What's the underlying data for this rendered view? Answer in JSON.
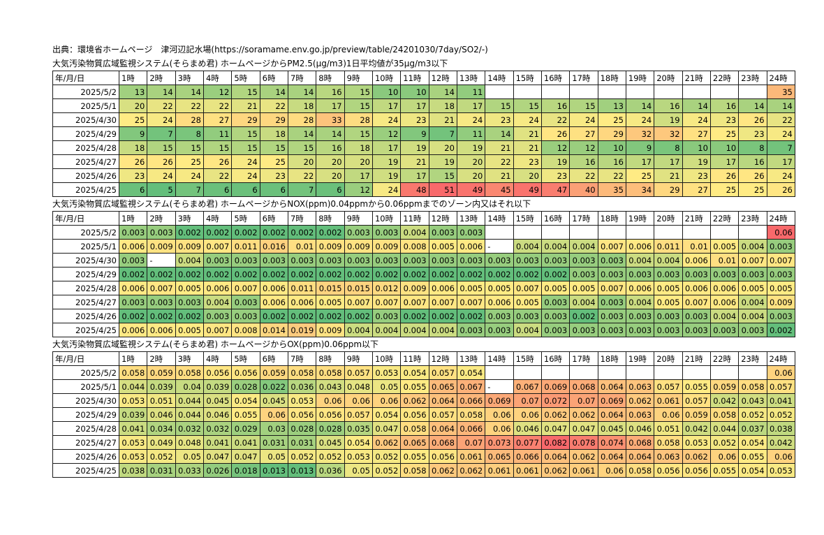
{
  "source_line": "出典：環境省ホームページ　津河辺記水場(https://soramame.env.go.jp/preview/table/24201030/7day/SO2/-)",
  "header_row": [
    "年/月/日",
    "1時",
    "2時",
    "3時",
    "4時",
    "5時",
    "6時",
    "7時",
    "8時",
    "9時",
    "10時",
    "11時",
    "12時",
    "13時",
    "14時",
    "15時",
    "16時",
    "17時",
    "18時",
    "19時",
    "20時",
    "21時",
    "22時",
    "23時",
    "24時"
  ],
  "tables": [
    {
      "title": "大気汚染物質広域監視システム(そらまめ君) ホームページからPM2.5(μg/m3)1日平均値が35μg/m3以下",
      "scale": {
        "min": 5,
        "mid": 25,
        "max": 51
      },
      "rows": [
        {
          "date": "2025/5/2",
          "values": [
            "13",
            "14",
            "14",
            "12",
            "15",
            "14",
            "14",
            "16",
            "15",
            "10",
            "10",
            "14",
            "11",
            "",
            "",
            "",
            "",
            "",
            "",
            "",
            "",
            "",
            "",
            "35"
          ]
        },
        {
          "date": "2025/5/1",
          "values": [
            "20",
            "22",
            "22",
            "22",
            "21",
            "22",
            "18",
            "17",
            "15",
            "17",
            "17",
            "18",
            "17",
            "15",
            "15",
            "16",
            "15",
            "13",
            "14",
            "16",
            "14",
            "16",
            "14",
            "14"
          ]
        },
        {
          "date": "2025/4/30",
          "values": [
            "25",
            "24",
            "28",
            "27",
            "29",
            "29",
            "28",
            "33",
            "28",
            "24",
            "23",
            "21",
            "24",
            "23",
            "24",
            "22",
            "24",
            "25",
            "24",
            "19",
            "24",
            "23",
            "26",
            "22"
          ]
        },
        {
          "date": "2025/4/29",
          "values": [
            "9",
            "7",
            "8",
            "11",
            "15",
            "18",
            "14",
            "14",
            "15",
            "12",
            "9",
            "7",
            "11",
            "14",
            "21",
            "26",
            "27",
            "29",
            "32",
            "32",
            "27",
            "25",
            "23",
            "24"
          ]
        },
        {
          "date": "2025/4/28",
          "values": [
            "18",
            "15",
            "15",
            "15",
            "15",
            "15",
            "15",
            "16",
            "18",
            "17",
            "19",
            "20",
            "19",
            "21",
            "21",
            "12",
            "12",
            "10",
            "9",
            "8",
            "10",
            "10",
            "8",
            "7"
          ]
        },
        {
          "date": "2025/4/27",
          "values": [
            "26",
            "26",
            "25",
            "26",
            "24",
            "25",
            "20",
            "20",
            "20",
            "19",
            "21",
            "19",
            "20",
            "22",
            "23",
            "19",
            "16",
            "16",
            "17",
            "17",
            "19",
            "17",
            "16",
            "17"
          ]
        },
        {
          "date": "2025/4/26",
          "values": [
            "23",
            "24",
            "24",
            "22",
            "24",
            "23",
            "22",
            "20",
            "17",
            "19",
            "17",
            "15",
            "20",
            "21",
            "20",
            "23",
            "22",
            "22",
            "25",
            "21",
            "23",
            "26",
            "26",
            "24"
          ]
        },
        {
          "date": "2025/4/25",
          "values": [
            "6",
            "5",
            "7",
            "6",
            "6",
            "6",
            "7",
            "6",
            "12",
            "24",
            "48",
            "51",
            "49",
            "45",
            "49",
            "47",
            "40",
            "35",
            "34",
            "29",
            "27",
            "25",
            "25",
            "26"
          ]
        }
      ]
    },
    {
      "title": "大気汚染物質広域監視システム(そらまめ君) ホームページからNOX(ppm)0.04ppmから0.06ppmまでのゾーン内又はそれ以下",
      "scale": {
        "min": 0.002,
        "mid": 0.005,
        "max": 0.06
      },
      "rows": [
        {
          "date": "2025/5/2",
          "values": [
            "0.003",
            "0.003",
            "0.002",
            "0.002",
            "0.002",
            "0.002",
            "0.002",
            "0.002",
            "0.003",
            "0.003",
            "0.004",
            "0.003",
            "0.003",
            "",
            "",
            "",
            "",
            "",
            "",
            "",
            "",
            "",
            "",
            "0.06"
          ]
        },
        {
          "date": "2025/5/1",
          "values": [
            "0.006",
            "0.009",
            "0.009",
            "0.007",
            "0.011",
            "0.016",
            "0.01",
            "0.009",
            "0.009",
            "0.009",
            "0.008",
            "0.005",
            "0.006",
            "-",
            "0.004",
            "0.004",
            "0.004",
            "0.007",
            "0.006",
            "0.011",
            "0.01",
            "0.005",
            "0.004",
            "0.003"
          ]
        },
        {
          "date": "2025/4/30",
          "values": [
            "0.003",
            "-",
            "0.004",
            "0.003",
            "0.003",
            "0.003",
            "0.003",
            "0.003",
            "0.003",
            "0.003",
            "0.003",
            "0.003",
            "0.003",
            "0.003",
            "0.003",
            "0.003",
            "0.003",
            "0.003",
            "0.004",
            "0.004",
            "0.006",
            "0.01",
            "0.007",
            "0.007"
          ]
        },
        {
          "date": "2025/4/29",
          "values": [
            "0.002",
            "0.002",
            "0.002",
            "0.002",
            "0.002",
            "0.002",
            "0.002",
            "0.002",
            "0.002",
            "0.002",
            "0.002",
            "0.002",
            "0.002",
            "0.002",
            "0.002",
            "0.002",
            "0.003",
            "0.003",
            "0.003",
            "0.003",
            "0.003",
            "0.003",
            "0.003",
            "0.003"
          ]
        },
        {
          "date": "2025/4/28",
          "values": [
            "0.006",
            "0.007",
            "0.005",
            "0.006",
            "0.007",
            "0.006",
            "0.011",
            "0.015",
            "0.015",
            "0.012",
            "0.009",
            "0.006",
            "0.005",
            "0.005",
            "0.007",
            "0.005",
            "0.005",
            "0.007",
            "0.006",
            "0.005",
            "0.006",
            "0.006",
            "0.005",
            "0.005"
          ]
        },
        {
          "date": "2025/4/27",
          "values": [
            "0.003",
            "0.003",
            "0.003",
            "0.004",
            "0.003",
            "0.006",
            "0.006",
            "0.005",
            "0.007",
            "0.007",
            "0.007",
            "0.007",
            "0.007",
            "0.006",
            "0.005",
            "0.003",
            "0.004",
            "0.003",
            "0.004",
            "0.005",
            "0.007",
            "0.006",
            "0.004",
            "0.009"
          ]
        },
        {
          "date": "2025/4/26",
          "values": [
            "0.002",
            "0.002",
            "0.002",
            "0.003",
            "0.003",
            "0.002",
            "0.002",
            "0.002",
            "0.002",
            "0.003",
            "0.002",
            "0.002",
            "0.002",
            "0.003",
            "0.003",
            "0.003",
            "0.002",
            "0.003",
            "0.003",
            "0.003",
            "0.003",
            "0.004",
            "0.004",
            "0.003"
          ]
        },
        {
          "date": "2025/4/25",
          "values": [
            "0.006",
            "0.006",
            "0.005",
            "0.007",
            "0.008",
            "0.014",
            "0.019",
            "0.009",
            "0.004",
            "0.004",
            "0.004",
            "0.004",
            "0.003",
            "0.003",
            "0.004",
            "0.003",
            "0.003",
            "0.003",
            "0.003",
            "0.003",
            "0.003",
            "0.003",
            "0.003",
            "0.002"
          ]
        }
      ]
    },
    {
      "title": "大気汚染物質広域監視システム(そらまめ君) ホームページからOX(ppm)0.06ppm以下",
      "scale": {
        "min": 0.013,
        "mid": 0.055,
        "max": 0.082
      },
      "rows": [
        {
          "date": "2025/5/2",
          "values": [
            "0.058",
            "0.059",
            "0.058",
            "0.056",
            "0.056",
            "0.059",
            "0.058",
            "0.058",
            "0.057",
            "0.053",
            "0.054",
            "0.057",
            "0.054",
            "",
            "",
            "",
            "",
            "",
            "",
            "",
            "",
            "",
            "",
            "0.06"
          ]
        },
        {
          "date": "2025/5/1",
          "values": [
            "0.044",
            "0.039",
            "0.04",
            "0.039",
            "0.028",
            "0.022",
            "0.036",
            "0.043",
            "0.048",
            "0.05",
            "0.055",
            "0.065",
            "0.067",
            "-",
            "0.067",
            "0.069",
            "0.068",
            "0.064",
            "0.063",
            "0.057",
            "0.055",
            "0.059",
            "0.058",
            "0.057"
          ]
        },
        {
          "date": "2025/4/30",
          "values": [
            "0.053",
            "0.051",
            "0.044",
            "0.045",
            "0.054",
            "0.045",
            "0.053",
            "0.06",
            "0.06",
            "0.06",
            "0.062",
            "0.064",
            "0.066",
            "0.069",
            "0.07",
            "0.072",
            "0.07",
            "0.069",
            "0.062",
            "0.061",
            "0.057",
            "0.042",
            "0.043",
            "0.041"
          ]
        },
        {
          "date": "2025/4/29",
          "values": [
            "0.039",
            "0.046",
            "0.044",
            "0.046",
            "0.055",
            "0.06",
            "0.056",
            "0.056",
            "0.057",
            "0.054",
            "0.056",
            "0.057",
            "0.058",
            "0.06",
            "0.06",
            "0.062",
            "0.062",
            "0.064",
            "0.063",
            "0.06",
            "0.059",
            "0.058",
            "0.052",
            "0.052"
          ]
        },
        {
          "date": "2025/4/28",
          "values": [
            "0.041",
            "0.034",
            "0.032",
            "0.032",
            "0.029",
            "0.03",
            "0.028",
            "0.028",
            "0.035",
            "0.047",
            "0.058",
            "0.064",
            "0.066",
            "0.06",
            "0.046",
            "0.047",
            "0.047",
            "0.045",
            "0.046",
            "0.051",
            "0.042",
            "0.044",
            "0.037",
            "0.038"
          ]
        },
        {
          "date": "2025/4/27",
          "values": [
            "0.053",
            "0.049",
            "0.048",
            "0.041",
            "0.041",
            "0.031",
            "0.031",
            "0.045",
            "0.054",
            "0.062",
            "0.065",
            "0.068",
            "0.07",
            "0.073",
            "0.077",
            "0.082",
            "0.078",
            "0.074",
            "0.068",
            "0.058",
            "0.053",
            "0.052",
            "0.054",
            "0.042"
          ]
        },
        {
          "date": "2025/4/26",
          "values": [
            "0.053",
            "0.052",
            "0.05",
            "0.047",
            "0.047",
            "0.05",
            "0.052",
            "0.052",
            "0.053",
            "0.052",
            "0.055",
            "0.056",
            "0.061",
            "0.065",
            "0.066",
            "0.064",
            "0.062",
            "0.064",
            "0.064",
            "0.063",
            "0.062",
            "0.06",
            "0.055",
            "0.06"
          ]
        },
        {
          "date": "2025/4/25",
          "values": [
            "0.038",
            "0.031",
            "0.033",
            "0.026",
            "0.018",
            "0.013",
            "0.013",
            "0.036",
            "0.05",
            "0.052",
            "0.058",
            "0.062",
            "0.062",
            "0.061",
            "0.061",
            "0.062",
            "0.061",
            "0.06",
            "0.058",
            "0.056",
            "0.056",
            "0.055",
            "0.054",
            "0.053"
          ]
        }
      ]
    }
  ],
  "colors": {
    "low": "#63be7b",
    "mid": "#ffeb84",
    "high": "#f8696b",
    "border": "#1a1a1a",
    "text": "#000000"
  }
}
